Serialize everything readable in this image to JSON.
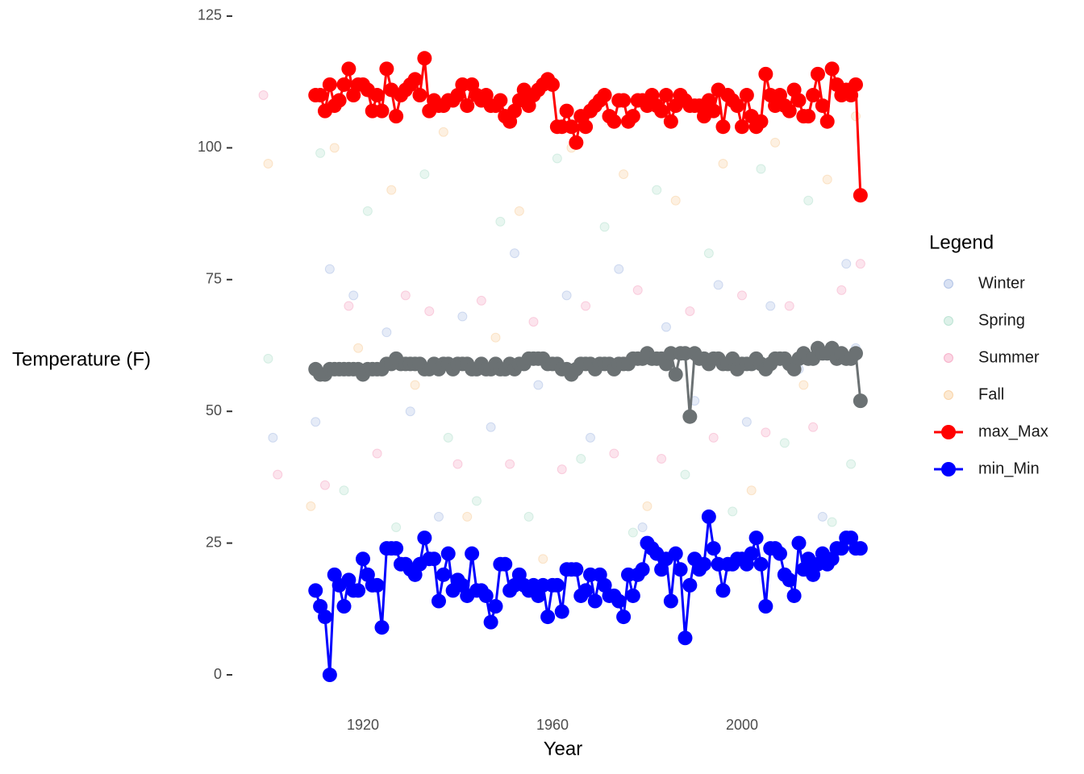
{
  "chart_data": {
    "type": "scatter",
    "x_label": "Year",
    "y_label": "Temperature (F)",
    "legend_title": "Legend",
    "legend_position": "right",
    "xlim": [
      1898,
      2027
    ],
    "xticks": [
      1920,
      1960,
      2000
    ],
    "ylim": [
      -5,
      127
    ],
    "yticks": [
      0,
      25,
      50,
      75,
      100,
      125
    ],
    "x": [
      1910,
      1911,
      1912,
      1913,
      1914,
      1915,
      1916,
      1917,
      1918,
      1919,
      1920,
      1921,
      1922,
      1923,
      1924,
      1925,
      1926,
      1927,
      1928,
      1929,
      1930,
      1931,
      1932,
      1933,
      1934,
      1935,
      1936,
      1937,
      1938,
      1939,
      1940,
      1941,
      1942,
      1943,
      1944,
      1945,
      1946,
      1947,
      1948,
      1949,
      1950,
      1951,
      1952,
      1953,
      1954,
      1955,
      1956,
      1957,
      1958,
      1959,
      1960,
      1961,
      1962,
      1963,
      1964,
      1965,
      1966,
      1967,
      1968,
      1969,
      1970,
      1971,
      1972,
      1973,
      1974,
      1975,
      1976,
      1977,
      1978,
      1979,
      1980,
      1981,
      1982,
      1983,
      1984,
      1985,
      1986,
      1987,
      1988,
      1989,
      1990,
      1991,
      1992,
      1993,
      1994,
      1995,
      1996,
      1997,
      1998,
      1999,
      2000,
      2001,
      2002,
      2003,
      2004,
      2005,
      2006,
      2007,
      2008,
      2009,
      2010,
      2011,
      2012,
      2013,
      2014,
      2015,
      2016,
      2017,
      2018,
      2019,
      2020,
      2021,
      2022,
      2023,
      2024,
      2025
    ],
    "series": [
      {
        "name": "Winter",
        "type": "scatter",
        "color": "#7d9bd6",
        "opacity": 0.2,
        "x": [
          1901,
          1910,
          1913,
          1918,
          1925,
          1930,
          1936,
          1941,
          1947,
          1952,
          1957,
          1963,
          1968,
          1974,
          1979,
          1984,
          1990,
          1995,
          2001,
          2006,
          2012,
          2017,
          2022,
          2024
        ],
        "values": [
          45,
          48,
          77,
          72,
          65,
          50,
          30,
          68,
          47,
          80,
          55,
          72,
          45,
          77,
          28,
          66,
          52,
          74,
          48,
          70,
          58,
          30,
          78,
          62
        ]
      },
      {
        "name": "Spring",
        "type": "scatter",
        "color": "#8ed1b5",
        "opacity": 0.2,
        "x": [
          1900,
          1911,
          1916,
          1921,
          1927,
          1933,
          1938,
          1944,
          1949,
          1955,
          1961,
          1966,
          1971,
          1977,
          1982,
          1988,
          1993,
          1998,
          2004,
          2009,
          2014,
          2019,
          2023
        ],
        "values": [
          60,
          99,
          35,
          88,
          28,
          95,
          45,
          33,
          86,
          30,
          98,
          41,
          85,
          27,
          92,
          38,
          80,
          31,
          96,
          44,
          90,
          29,
          40
        ]
      },
      {
        "name": "Summer",
        "type": "scatter",
        "color": "#f27aa6",
        "opacity": 0.2,
        "x": [
          1899,
          1902,
          1912,
          1917,
          1923,
          1929,
          1934,
          1940,
          1945,
          1951,
          1956,
          1962,
          1967,
          1973,
          1978,
          1983,
          1989,
          1994,
          2000,
          2005,
          2010,
          2015,
          2021,
          2025
        ],
        "values": [
          110,
          38,
          36,
          70,
          42,
          72,
          69,
          40,
          71,
          40,
          67,
          39,
          70,
          42,
          73,
          41,
          69,
          45,
          72,
          46,
          70,
          47,
          73,
          78
        ]
      },
      {
        "name": "Fall",
        "type": "scatter",
        "color": "#f5b56b",
        "opacity": 0.2,
        "x": [
          1900,
          1909,
          1914,
          1919,
          1926,
          1931,
          1937,
          1942,
          1948,
          1953,
          1958,
          1964,
          1969,
          1975,
          1980,
          1986,
          1991,
          1996,
          2002,
          2007,
          2013,
          2018,
          2024
        ],
        "values": [
          97,
          32,
          100,
          62,
          92,
          55,
          103,
          30,
          64,
          88,
          22,
          100,
          58,
          95,
          32,
          90,
          60,
          97,
          35,
          101,
          55,
          94,
          106
        ]
      },
      {
        "name": "max_Max",
        "type": "line",
        "color": "#ff0000",
        "values": [
          110,
          110,
          107,
          112,
          108,
          109,
          112,
          115,
          110,
          112,
          112,
          111,
          107,
          110,
          107,
          115,
          111,
          106,
          110,
          111,
          112,
          113,
          110,
          117,
          107,
          109,
          108,
          108,
          109,
          109,
          110,
          112,
          108,
          112,
          110,
          109,
          110,
          108,
          108,
          109,
          106,
          105,
          107,
          109,
          111,
          108,
          110,
          111,
          112,
          113,
          112,
          104,
          104,
          107,
          104,
          101,
          106,
          104,
          107,
          108,
          109,
          110,
          106,
          105,
          109,
          109,
          105,
          106,
          109,
          109,
          108,
          110,
          108,
          107,
          110,
          105,
          108,
          110,
          109,
          108,
          108,
          108,
          106,
          109,
          107,
          111,
          104,
          110,
          109,
          108,
          104,
          110,
          106,
          104,
          105,
          114,
          110,
          108,
          110,
          108,
          107,
          111,
          109,
          106,
          106,
          110,
          114,
          108,
          105,
          115,
          112,
          110,
          111,
          110,
          112,
          91
        ]
      },
      {
        "name": "min_Min",
        "type": "line",
        "color": "#0000ff",
        "values": [
          16,
          13,
          11,
          0,
          19,
          17,
          13,
          18,
          16,
          16,
          22,
          19,
          17,
          17,
          9,
          24,
          24,
          24,
          21,
          21,
          20,
          19,
          21,
          26,
          22,
          22,
          14,
          19,
          23,
          16,
          18,
          17,
          15,
          23,
          16,
          16,
          15,
          10,
          13,
          21,
          21,
          16,
          17,
          19,
          17,
          16,
          17,
          15,
          17,
          11,
          17,
          17,
          12,
          20,
          20,
          20,
          15,
          16,
          19,
          14,
          19,
          17,
          15,
          15,
          14,
          11,
          19,
          15,
          19,
          20,
          25,
          24,
          23,
          20,
          22,
          14,
          23,
          20,
          7,
          17,
          22,
          20,
          21,
          30,
          24,
          21,
          16,
          21,
          21,
          22,
          22,
          21,
          23,
          26,
          21,
          13,
          24,
          24,
          23,
          19,
          18,
          15,
          25,
          20,
          22,
          19,
          21,
          23,
          21,
          22,
          24,
          24,
          26,
          26,
          24,
          24
        ]
      },
      {
        "type": "line",
        "color": "#6b7173",
        "values": [
          58,
          57,
          57,
          58,
          58,
          58,
          58,
          58,
          58,
          58,
          57,
          58,
          58,
          58,
          58,
          59,
          59,
          60,
          59,
          59,
          59,
          59,
          59,
          58,
          58,
          59,
          58,
          59,
          59,
          58,
          59,
          59,
          59,
          58,
          58,
          59,
          58,
          58,
          59,
          58,
          58,
          59,
          58,
          59,
          59,
          60,
          60,
          60,
          60,
          59,
          59,
          59,
          58,
          58,
          57,
          58,
          59,
          59,
          59,
          58,
          59,
          59,
          59,
          58,
          59,
          59,
          59,
          60,
          60,
          60,
          61,
          60,
          60,
          60,
          59,
          61,
          57,
          61,
          61,
          49,
          61,
          60,
          60,
          59,
          60,
          60,
          59,
          59,
          60,
          58,
          59,
          59,
          59,
          60,
          59,
          58,
          59,
          60,
          60,
          60,
          59,
          58,
          60,
          61,
          60,
          60,
          62,
          61,
          61,
          62,
          60,
          61,
          60,
          60,
          61,
          52
        ]
      }
    ]
  }
}
